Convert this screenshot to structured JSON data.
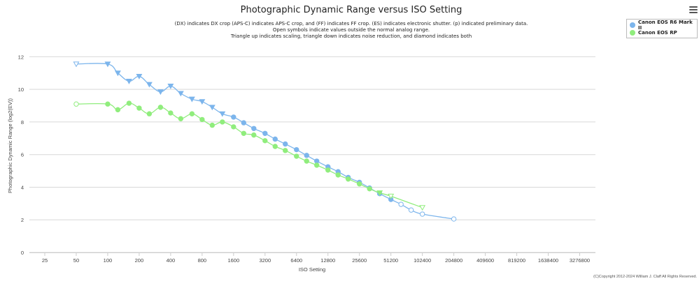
{
  "menu_icon": "hamburger-menu-icon",
  "credit": "(C)Copyright 2012-2024 William J. Claff All Rights Reserved.",
  "chart_data": {
    "type": "line",
    "title": "Photographic Dynamic Range versus ISO Setting",
    "subtitle": [
      "(DX) indicates DX crop (APS-C) indicates APS-C crop, and (FF) indicates FF crop. (ES) indicates electronic shutter. (p) indicated preliminary data.",
      "Open symbols indicate values outside the normal analog range.",
      "Triangle up indicates scaling, triangle down indicates noise reduction, and diamond indicates both"
    ],
    "xlabel": "ISO Setting",
    "ylabel": "Photographic Dynamic Range (log2(EV))",
    "x_scale": "log2",
    "x_ticks": [
      25,
      50,
      100,
      200,
      400,
      800,
      1600,
      3200,
      6400,
      12800,
      25600,
      51200,
      102400,
      204800,
      409600,
      819200,
      1638400,
      3276800
    ],
    "ylim": [
      0,
      13
    ],
    "y_ticks": [
      0,
      2,
      4,
      6,
      8,
      10,
      12
    ],
    "legend": "top-right",
    "series": [
      {
        "name": "Canon EOS R6 Mark II",
        "color": "#7cb5ec",
        "points": [
          {
            "x": 50,
            "y": 11.55,
            "marker": "triangle-down",
            "open": true
          },
          {
            "x": 100,
            "y": 11.55,
            "marker": "triangle-down",
            "open": false
          },
          {
            "x": 125,
            "y": 11.0,
            "marker": "triangle-down",
            "open": false
          },
          {
            "x": 160,
            "y": 10.5,
            "marker": "triangle-down",
            "open": false
          },
          {
            "x": 200,
            "y": 10.8,
            "marker": "triangle-down",
            "open": false
          },
          {
            "x": 250,
            "y": 10.3,
            "marker": "triangle-down",
            "open": false
          },
          {
            "x": 320,
            "y": 9.85,
            "marker": "triangle-down",
            "open": false
          },
          {
            "x": 400,
            "y": 10.2,
            "marker": "triangle-down",
            "open": false
          },
          {
            "x": 500,
            "y": 9.75,
            "marker": "triangle-down",
            "open": false
          },
          {
            "x": 640,
            "y": 9.4,
            "marker": "triangle-down",
            "open": false
          },
          {
            "x": 800,
            "y": 9.25,
            "marker": "triangle-down",
            "open": false
          },
          {
            "x": 1000,
            "y": 8.9,
            "marker": "triangle-down",
            "open": false
          },
          {
            "x": 1250,
            "y": 8.5,
            "marker": "triangle-down",
            "open": false
          },
          {
            "x": 1600,
            "y": 8.3,
            "marker": "circle",
            "open": false
          },
          {
            "x": 2000,
            "y": 7.95,
            "marker": "circle",
            "open": false
          },
          {
            "x": 2500,
            "y": 7.6,
            "marker": "circle",
            "open": false
          },
          {
            "x": 3200,
            "y": 7.3,
            "marker": "circle",
            "open": false
          },
          {
            "x": 4000,
            "y": 6.95,
            "marker": "circle",
            "open": false
          },
          {
            "x": 5000,
            "y": 6.65,
            "marker": "circle",
            "open": false
          },
          {
            "x": 6400,
            "y": 6.3,
            "marker": "circle",
            "open": false
          },
          {
            "x": 8000,
            "y": 5.95,
            "marker": "circle",
            "open": false
          },
          {
            "x": 10000,
            "y": 5.6,
            "marker": "circle",
            "open": false
          },
          {
            "x": 12800,
            "y": 5.25,
            "marker": "circle",
            "open": false
          },
          {
            "x": 16000,
            "y": 4.95,
            "marker": "circle",
            "open": false
          },
          {
            "x": 20000,
            "y": 4.6,
            "marker": "circle",
            "open": false
          },
          {
            "x": 25600,
            "y": 4.3,
            "marker": "circle",
            "open": false
          },
          {
            "x": 32000,
            "y": 3.95,
            "marker": "circle",
            "open": false
          },
          {
            "x": 40000,
            "y": 3.6,
            "marker": "circle",
            "open": false
          },
          {
            "x": 51200,
            "y": 3.25,
            "marker": "circle",
            "open": false
          },
          {
            "x": 64000,
            "y": 2.95,
            "marker": "circle",
            "open": true
          },
          {
            "x": 80000,
            "y": 2.6,
            "marker": "circle",
            "open": true
          },
          {
            "x": 102400,
            "y": 2.35,
            "marker": "circle",
            "open": true
          },
          {
            "x": 204800,
            "y": 2.05,
            "marker": "circle",
            "open": true
          }
        ]
      },
      {
        "name": "Canon EOS RP",
        "color": "#90ed7d",
        "points": [
          {
            "x": 50,
            "y": 9.1,
            "marker": "circle",
            "open": true
          },
          {
            "x": 100,
            "y": 9.1,
            "marker": "circle",
            "open": false
          },
          {
            "x": 125,
            "y": 8.75,
            "marker": "circle",
            "open": false
          },
          {
            "x": 160,
            "y": 9.15,
            "marker": "circle",
            "open": false
          },
          {
            "x": 200,
            "y": 8.85,
            "marker": "circle",
            "open": false
          },
          {
            "x": 250,
            "y": 8.5,
            "marker": "circle",
            "open": false
          },
          {
            "x": 320,
            "y": 8.9,
            "marker": "circle",
            "open": false
          },
          {
            "x": 400,
            "y": 8.55,
            "marker": "circle",
            "open": false
          },
          {
            "x": 500,
            "y": 8.2,
            "marker": "circle",
            "open": false
          },
          {
            "x": 640,
            "y": 8.5,
            "marker": "circle",
            "open": false
          },
          {
            "x": 800,
            "y": 8.15,
            "marker": "circle",
            "open": false
          },
          {
            "x": 1000,
            "y": 7.8,
            "marker": "circle",
            "open": false
          },
          {
            "x": 1250,
            "y": 8.0,
            "marker": "circle",
            "open": false
          },
          {
            "x": 1600,
            "y": 7.7,
            "marker": "circle",
            "open": false
          },
          {
            "x": 2000,
            "y": 7.3,
            "marker": "circle",
            "open": false
          },
          {
            "x": 2500,
            "y": 7.2,
            "marker": "circle",
            "open": false
          },
          {
            "x": 3200,
            "y": 6.85,
            "marker": "circle",
            "open": false
          },
          {
            "x": 4000,
            "y": 6.5,
            "marker": "circle",
            "open": false
          },
          {
            "x": 5000,
            "y": 6.25,
            "marker": "circle",
            "open": false
          },
          {
            "x": 6400,
            "y": 5.9,
            "marker": "circle",
            "open": false
          },
          {
            "x": 8000,
            "y": 5.6,
            "marker": "circle",
            "open": false
          },
          {
            "x": 10000,
            "y": 5.35,
            "marker": "circle",
            "open": false
          },
          {
            "x": 12800,
            "y": 5.05,
            "marker": "circle",
            "open": false
          },
          {
            "x": 16000,
            "y": 4.75,
            "marker": "circle",
            "open": false
          },
          {
            "x": 20000,
            "y": 4.5,
            "marker": "circle",
            "open": false
          },
          {
            "x": 25600,
            "y": 4.2,
            "marker": "circle",
            "open": false
          },
          {
            "x": 32000,
            "y": 3.9,
            "marker": "circle",
            "open": false
          },
          {
            "x": 40000,
            "y": 3.65,
            "marker": "triangle-down",
            "open": false
          },
          {
            "x": 51200,
            "y": 3.45,
            "marker": "triangle-down",
            "open": true
          },
          {
            "x": 102400,
            "y": 2.75,
            "marker": "triangle-down",
            "open": true
          }
        ]
      }
    ]
  }
}
